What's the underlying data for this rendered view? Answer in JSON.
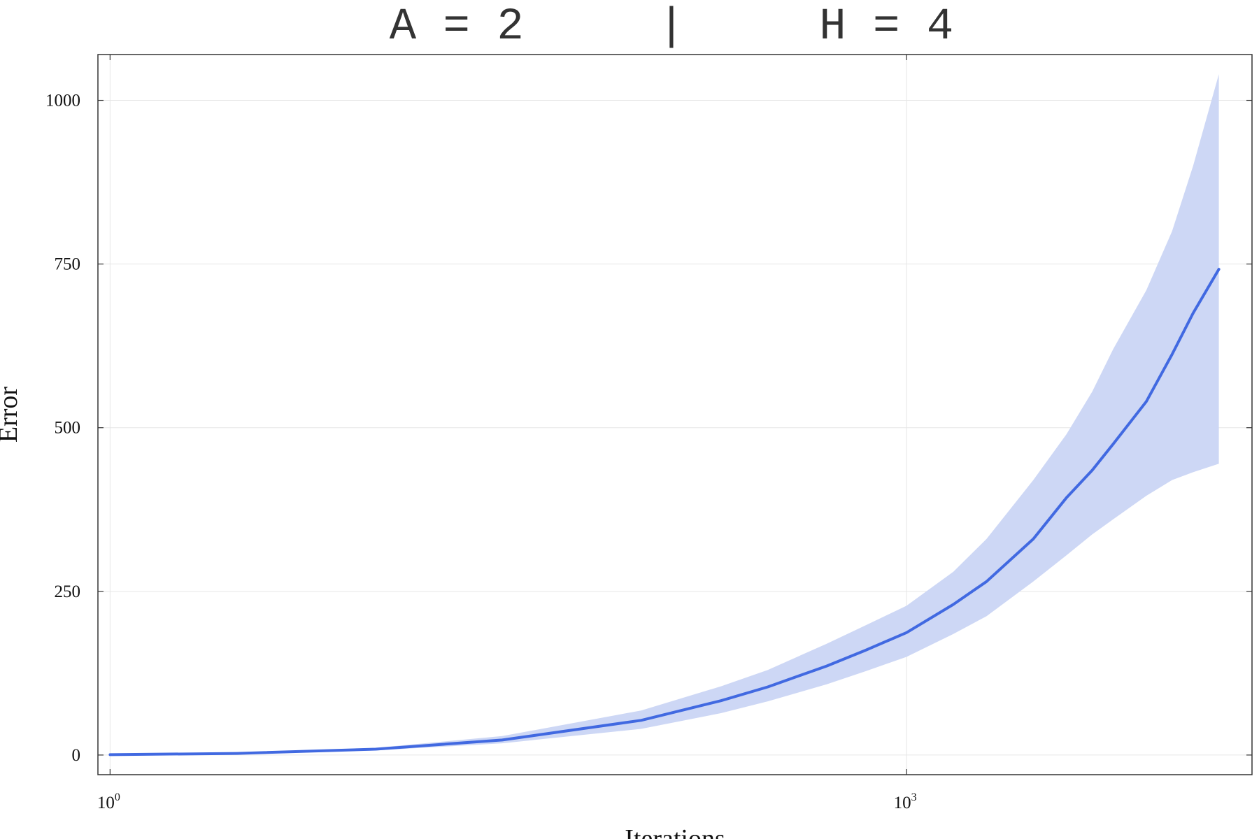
{
  "chart_data": {
    "type": "line",
    "title": "A = 2     |     H = 4",
    "xlabel": "Iterations",
    "ylabel": "Error",
    "x_scale": "log",
    "xlim": [
      0.9,
      20000
    ],
    "ylim": [
      -30,
      1070
    ],
    "grid": true,
    "x_ticks": [
      {
        "value": 1,
        "base": "10",
        "exp": "0"
      },
      {
        "value": 1000,
        "base": "10",
        "exp": "3"
      }
    ],
    "y_ticks": [
      {
        "value": 0,
        "label": "0"
      },
      {
        "value": 250,
        "label": "250"
      },
      {
        "value": 500,
        "label": "500"
      },
      {
        "value": 750,
        "label": "750"
      },
      {
        "value": 1000,
        "label": "1000"
      }
    ],
    "colors": {
      "line": "#4169e1",
      "band": "#cdd7f5",
      "grid": "#e6e6e6",
      "frame": "#333333"
    },
    "series": [
      {
        "x": [
          1,
          3,
          10,
          30,
          100,
          200,
          300,
          500,
          700,
          1000,
          1500,
          2000,
          3000,
          4000,
          5000,
          6000,
          8000,
          10000,
          12000,
          15000
        ],
        "y": [
          0.5,
          2.5,
          9,
          23,
          53,
          83,
          104,
          136,
          160,
          187,
          230,
          265,
          330,
          393,
          435,
          475,
          540,
          612,
          675,
          742
        ],
        "y_lower": [
          0.3,
          2,
          7,
          18,
          40,
          64,
          82,
          108,
          128,
          150,
          185,
          212,
          265,
          305,
          337,
          360,
          396,
          420,
          432,
          445
        ],
        "y_upper": [
          0.7,
          3,
          11,
          29,
          68,
          105,
          130,
          170,
          198,
          228,
          280,
          330,
          420,
          490,
          555,
          620,
          710,
          800,
          900,
          1040
        ]
      }
    ]
  }
}
